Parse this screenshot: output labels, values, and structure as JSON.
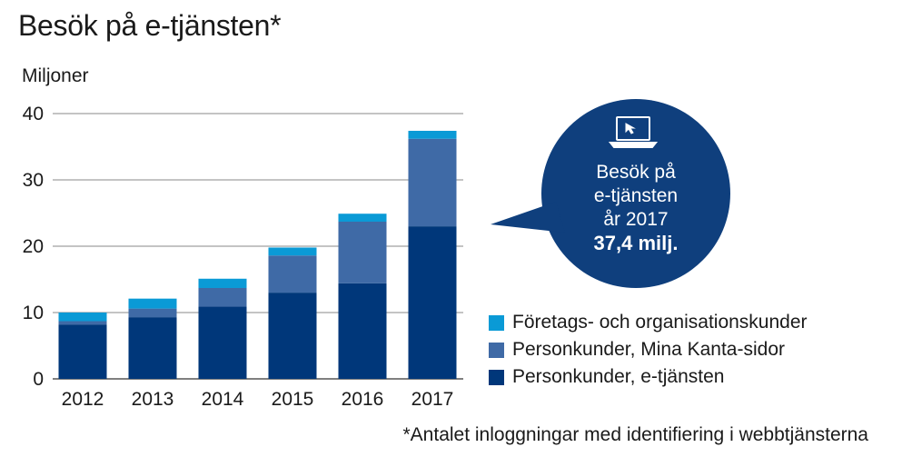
{
  "title": "Besök på e-tjänsten*",
  "unit_label": "Miljoner",
  "footnote": "*Antalet inloggningar med identifiering i webbtjänsterna",
  "callout": {
    "line1": "Besök på",
    "line2": "e-tjänsten",
    "line3": "år 2017",
    "value": "37,4 milj.",
    "icon": "laptop-icon"
  },
  "colors": {
    "foretag": "#0a9ad6",
    "mina_kanta": "#3f6aa6",
    "e_tjansten": "#00377a",
    "bubble": "#0f3f7d"
  },
  "legend": [
    {
      "label": "Företags- och organisationskunder",
      "color": "#0a9ad6"
    },
    {
      "label": "Personkunder, Mina Kanta-sidor",
      "color": "#3f6aa6"
    },
    {
      "label": "Personkunder, e-tjänsten",
      "color": "#00377a"
    }
  ],
  "chart_data": {
    "type": "bar",
    "stacked": true,
    "categories": [
      "2012",
      "2013",
      "2014",
      "2015",
      "2016",
      "2017"
    ],
    "series": [
      {
        "name": "Personkunder, e-tjänsten",
        "values": [
          8.2,
          9.3,
          10.9,
          13.0,
          14.4,
          23.0
        ]
      },
      {
        "name": "Personkunder, Mina Kanta-sidor",
        "values": [
          0.5,
          1.3,
          2.8,
          5.6,
          9.3,
          13.2
        ]
      },
      {
        "name": "Företags- och organisationskunder",
        "values": [
          1.3,
          1.5,
          1.4,
          1.2,
          1.2,
          1.2
        ]
      }
    ],
    "ylim": [
      0,
      40
    ],
    "yticks": [
      0,
      10,
      20,
      30,
      40
    ],
    "ylabel": "Miljoner",
    "xlabel": "",
    "grid": true,
    "legend_position": "right"
  }
}
